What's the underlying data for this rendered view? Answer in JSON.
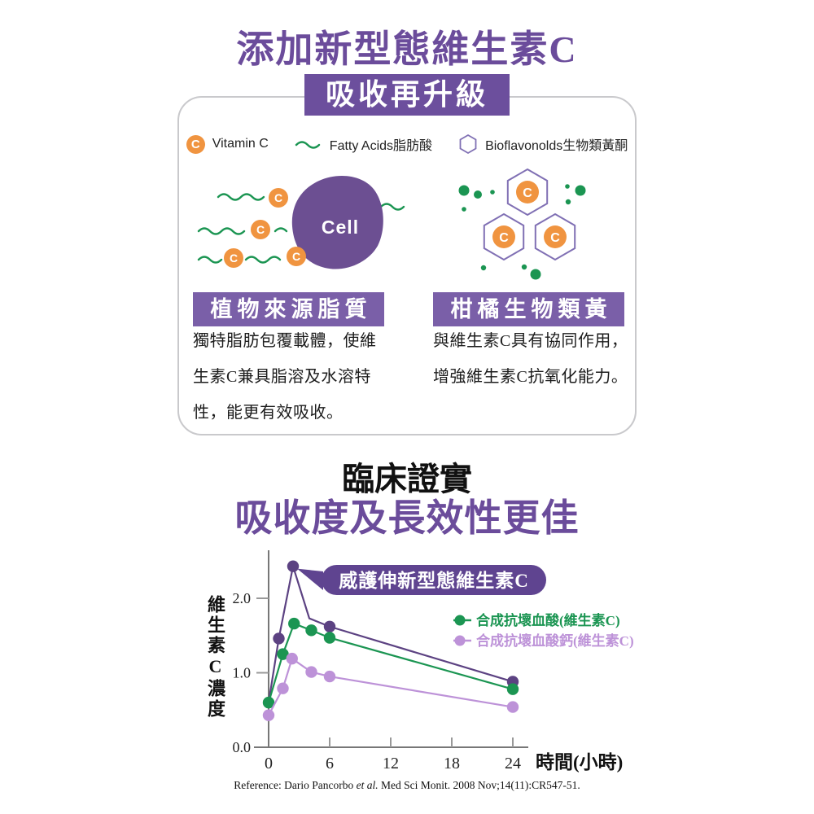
{
  "header": {
    "title": "添加新型態維生素C",
    "badge": "吸收再升級"
  },
  "symbols": {
    "c": "C"
  },
  "card": {
    "legend": [
      {
        "icon": "vitamin-c-icon",
        "label": "Vitamin C"
      },
      {
        "icon": "fatty-acid-wave-icon",
        "label": "Fatty Acids脂肪酸"
      },
      {
        "icon": "bioflavonoid-hexagon-icon",
        "label": "Bioflavonolds生物類黃酮"
      }
    ],
    "cell_label": "Cell",
    "columns": [
      {
        "header": "植物來源脂質",
        "body": "獨特脂肪包覆載體，使維生素C兼具脂溶及水溶特性，能更有效吸收。"
      },
      {
        "header": "柑橘生物類黃酮",
        "body": "與維生素C具有協同作用，增強維生素C抗氧化能力。"
      }
    ]
  },
  "section": {
    "title": "臨床證實",
    "subtitle": "吸收度及長效性更佳"
  },
  "chart_data": {
    "type": "line",
    "title": "",
    "xlabel": "時間(小時)",
    "ylabel": "維生素C濃度",
    "x_ticks": [
      0,
      6,
      12,
      18,
      24
    ],
    "y_ticks": [
      0.0,
      1.0,
      2.0
    ],
    "xlim": [
      0,
      25.5
    ],
    "ylim": [
      0,
      2.6
    ],
    "grid": false,
    "callout": "威護伸新型態維生素C",
    "series": [
      {
        "name": "威護伸新型態維生素C",
        "color": "#5C4282",
        "x": [
          0,
          1,
          2.4,
          4,
          6,
          24
        ],
        "y": [
          0.6,
          1.46,
          2.43,
          1.73,
          1.62,
          0.88
        ],
        "markers": [
          false,
          true,
          true,
          false,
          true,
          true
        ]
      },
      {
        "name": "合成抗壞血酸(維生素C)",
        "color": "#1B9552",
        "x": [
          0,
          1.4,
          2.5,
          4.2,
          6,
          24
        ],
        "y": [
          0.6,
          1.25,
          1.66,
          1.57,
          1.47,
          0.78
        ],
        "markers": [
          true,
          true,
          true,
          true,
          true,
          true
        ]
      },
      {
        "name": "合成抗壞血酸鈣(維生素C)",
        "color": "#BD92D8",
        "x": [
          0,
          1.4,
          2.3,
          4.2,
          6,
          24
        ],
        "y": [
          0.43,
          0.79,
          1.19,
          1.01,
          0.95,
          0.54
        ],
        "markers": [
          true,
          true,
          true,
          true,
          true,
          true
        ]
      }
    ],
    "legend": [
      {
        "label": "合成抗壞血酸(維生素C)",
        "color": "#1B9552"
      },
      {
        "label": "合成抗壞血酸鈣(維生素C)",
        "color": "#BD92D8"
      }
    ],
    "legend_position": "upper right"
  },
  "reference": {
    "prefix": "Reference: Dario Pancorbo ",
    "etal": "et al.",
    "suffix": " Med Sci Monit. 2008 Nov;14(11):CR547-51."
  },
  "colors": {
    "purple_title": "#6B4C9B",
    "purple_badge": "#6C4F9D",
    "purple_banner": "#7A5FA8",
    "purple_callout": "#5F4490",
    "purple_blob": "#6C4F92",
    "hex_outline": "#8070B4",
    "orange": "#F09440",
    "green": "#1B9552",
    "chart_purple": "#5C4282",
    "chart_lilac": "#BD92D8",
    "card_border": "#C9C9CC"
  }
}
